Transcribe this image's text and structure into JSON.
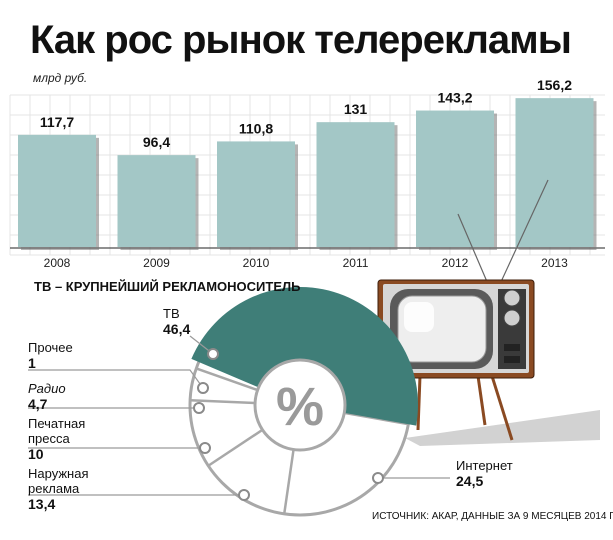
{
  "title": "Как рос рынок телерекламы",
  "unit": "млрд руб.",
  "source": "ИСТОЧНИК: АКАР, ДАННЫЕ ЗА 9 МЕСЯЦЕВ 2014 Г.",
  "section_title": "ТВ – КРУПНЕЙШИЙ РЕКЛАМОНОСИТЕЛЬ",
  "percent_symbol": "%",
  "colors": {
    "bar": "#a3c7c6",
    "tv_segment": "#3f7e78",
    "donut_outline": "#a8a8a8",
    "tv_body": "#8a4a22"
  },
  "chart_data": [
    {
      "type": "bar",
      "categories": [
        "2008",
        "2009",
        "2010",
        "2011",
        "2012",
        "2013"
      ],
      "values": [
        117.7,
        96.4,
        110.8,
        131,
        143.2,
        156.2
      ],
      "value_labels": [
        "117,7",
        "96,4",
        "110,8",
        "131",
        "143,2",
        "156,2"
      ],
      "ylabel": "млрд руб.",
      "ylim": [
        0,
        170
      ],
      "grid": true
    },
    {
      "type": "pie",
      "title": "ТВ – КРУПНЕЙШИЙ РЕКЛАМОНОСИТЕЛЬ",
      "slices": [
        {
          "label": "ТВ",
          "value": 46.4,
          "value_label": "46,4"
        },
        {
          "label": "Интернет",
          "value": 24.5,
          "value_label": "24,5"
        },
        {
          "label": "Наружная реклама",
          "value": 13.4,
          "value_label": "13,4"
        },
        {
          "label": "Печатная пресса",
          "value": 10,
          "value_label": "10"
        },
        {
          "label": "Радио",
          "value": 4.7,
          "value_label": "4,7"
        },
        {
          "label": "Прочее",
          "value": 1,
          "value_label": "1"
        }
      ]
    }
  ]
}
